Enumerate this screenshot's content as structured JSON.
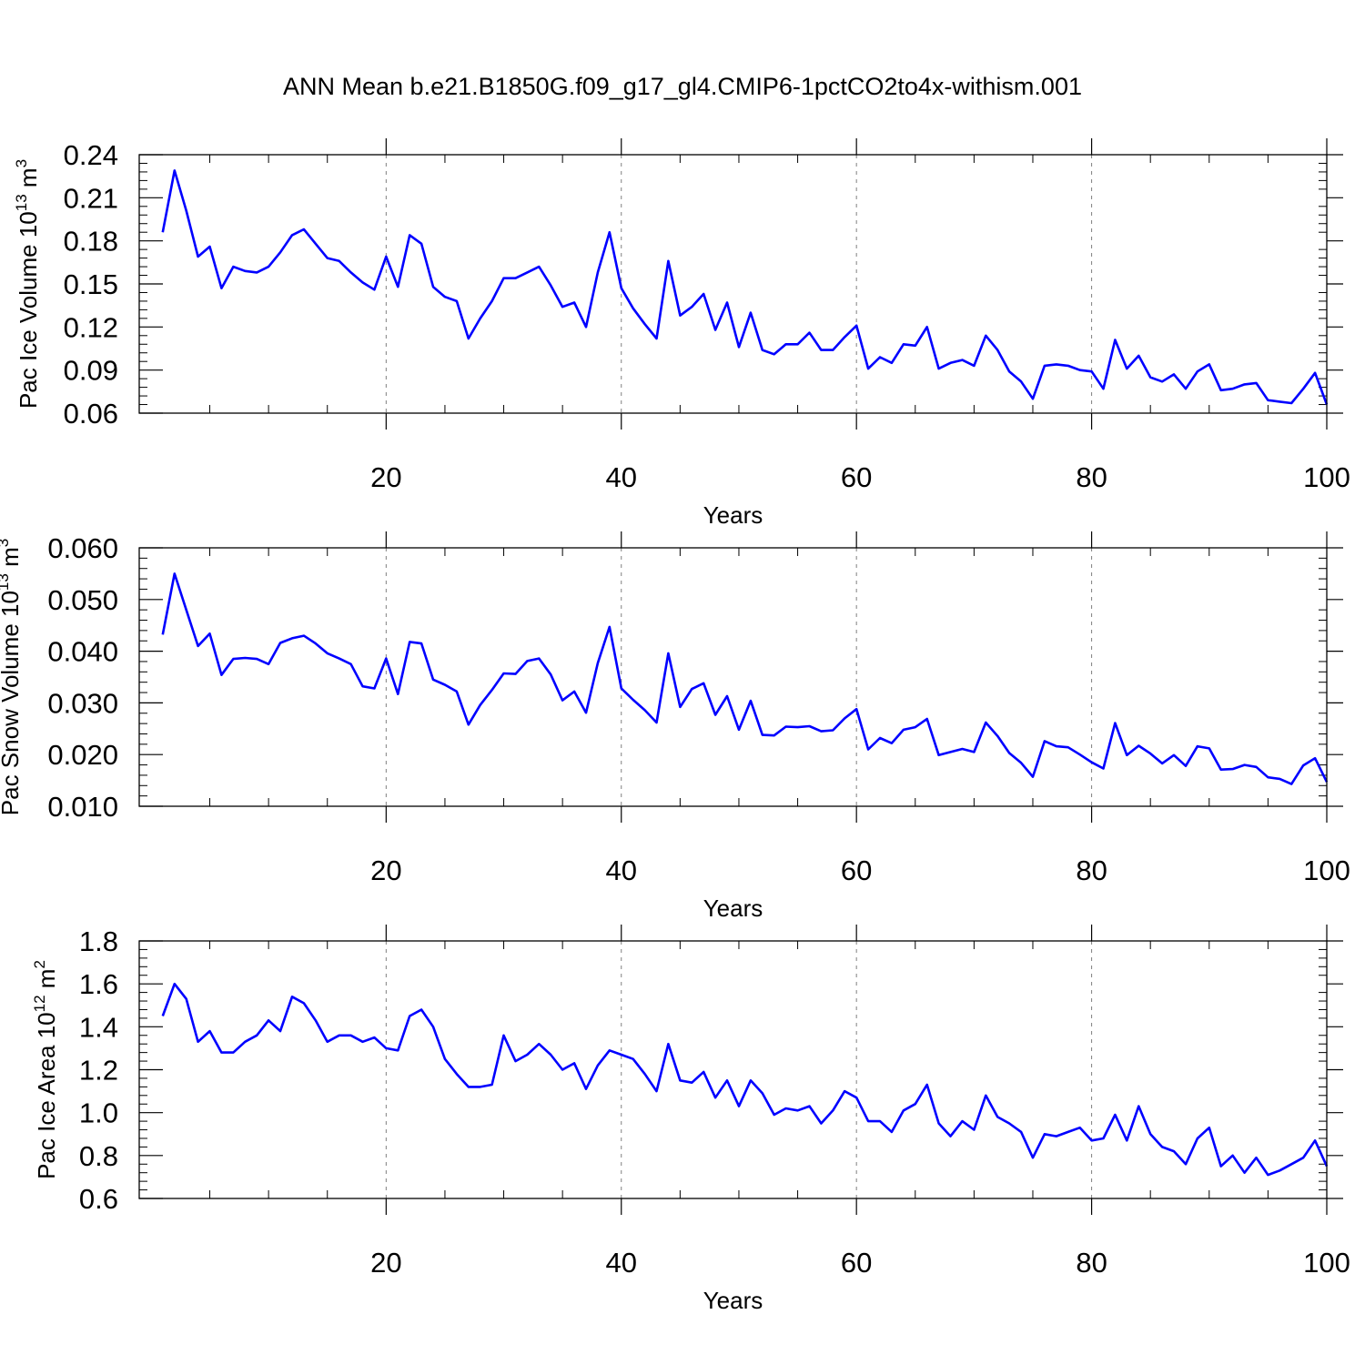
{
  "title": "ANN Mean b.e21.B1850G.f09_g17_gl4.CMIP6-1pctCO2to4x-withism.001",
  "colors": {
    "line": "#0000ff",
    "grid": "#808080",
    "axis": "#000000"
  },
  "chart_data": [
    {
      "type": "line",
      "xlabel": "Years",
      "ylabel_main": "Pac Ice Volume 10",
      "ylabel_exp": "13",
      "ylabel_unit": " m",
      "ylabel_unit_exp": "3",
      "xlim": [
        1,
        100
      ],
      "ylim": [
        0.06,
        0.24
      ],
      "yticks": [
        0.06,
        0.09,
        0.12,
        0.15,
        0.18,
        0.21,
        0.24
      ],
      "ytick_labels": [
        "0.06",
        "0.09",
        "0.12",
        "0.15",
        "0.18",
        "0.21",
        "0.24"
      ],
      "xticks": [
        20,
        40,
        60,
        80,
        100
      ],
      "xtick_labels": [
        "20",
        "40",
        "60",
        "80",
        "100"
      ],
      "grid": "vertical dashed at major x ticks",
      "values": [
        0.186,
        0.229,
        0.201,
        0.169,
        0.176,
        0.147,
        0.162,
        0.159,
        0.158,
        0.162,
        0.172,
        0.184,
        0.188,
        0.178,
        0.168,
        0.166,
        0.158,
        0.151,
        0.146,
        0.169,
        0.148,
        0.184,
        0.178,
        0.148,
        0.141,
        0.138,
        0.112,
        0.126,
        0.138,
        0.154,
        0.154,
        0.158,
        0.162,
        0.149,
        0.134,
        0.137,
        0.12,
        0.158,
        0.186,
        0.147,
        0.133,
        0.122,
        0.112,
        0.166,
        0.128,
        0.134,
        0.143,
        0.118,
        0.137,
        0.106,
        0.13,
        0.104,
        0.101,
        0.108,
        0.108,
        0.116,
        0.104,
        0.104,
        0.113,
        0.121,
        0.091,
        0.099,
        0.095,
        0.108,
        0.107,
        0.12,
        0.091,
        0.095,
        0.097,
        0.093,
        0.114,
        0.104,
        0.089,
        0.082,
        0.07,
        0.093,
        0.094,
        0.093,
        0.09,
        0.089,
        0.077,
        0.111,
        0.091,
        0.1,
        0.085,
        0.082,
        0.087,
        0.077,
        0.089,
        0.094,
        0.076,
        0.077,
        0.08,
        0.081,
        0.069,
        0.068,
        0.067,
        0.077,
        0.088,
        0.066
      ]
    },
    {
      "type": "line",
      "xlabel": "Years",
      "ylabel_main": "Pac Snow Volume 10",
      "ylabel_exp": "13",
      "ylabel_unit": " m",
      "ylabel_unit_exp": "3",
      "xlim": [
        1,
        100
      ],
      "ylim": [
        0.01,
        0.06
      ],
      "yticks": [
        0.01,
        0.02,
        0.03,
        0.04,
        0.05,
        0.06
      ],
      "ytick_labels": [
        "0.010",
        "0.020",
        "0.030",
        "0.040",
        "0.050",
        "0.060"
      ],
      "xticks": [
        20,
        40,
        60,
        80,
        100
      ],
      "xtick_labels": [
        "20",
        "40",
        "60",
        "80",
        "100"
      ],
      "grid": "vertical dashed at major x ticks",
      "values": [
        0.0432,
        0.055,
        0.048,
        0.041,
        0.0434,
        0.0354,
        0.0385,
        0.0387,
        0.0385,
        0.0375,
        0.0416,
        0.0425,
        0.043,
        0.0415,
        0.0396,
        0.0386,
        0.0375,
        0.0332,
        0.0328,
        0.0386,
        0.0317,
        0.0418,
        0.0415,
        0.0345,
        0.0335,
        0.0322,
        0.0258,
        0.0296,
        0.0325,
        0.0357,
        0.0356,
        0.0381,
        0.0386,
        0.0355,
        0.0305,
        0.0322,
        0.0281,
        0.0377,
        0.0447,
        0.0328,
        0.0306,
        0.0286,
        0.0262,
        0.0396,
        0.0292,
        0.0327,
        0.0338,
        0.0277,
        0.0313,
        0.0248,
        0.0304,
        0.0238,
        0.0237,
        0.0254,
        0.0253,
        0.0255,
        0.0245,
        0.0247,
        0.027,
        0.0288,
        0.021,
        0.0232,
        0.0222,
        0.0248,
        0.0253,
        0.0269,
        0.0199,
        0.0205,
        0.0211,
        0.0205,
        0.0262,
        0.0236,
        0.0203,
        0.0184,
        0.0157,
        0.0226,
        0.0216,
        0.0214,
        0.02,
        0.0185,
        0.0173,
        0.0261,
        0.0199,
        0.0217,
        0.0202,
        0.0183,
        0.0199,
        0.0178,
        0.0216,
        0.0212,
        0.0171,
        0.0172,
        0.018,
        0.0176,
        0.0156,
        0.0153,
        0.0143,
        0.0179,
        0.0193,
        0.0147
      ]
    },
    {
      "type": "line",
      "xlabel": "Years",
      "ylabel_main": "Pac Ice Area 10",
      "ylabel_exp": "12",
      "ylabel_unit": " m",
      "ylabel_unit_exp": "2",
      "xlim": [
        1,
        100
      ],
      "ylim": [
        0.6,
        1.8
      ],
      "yticks": [
        0.6,
        0.8,
        1.0,
        1.2,
        1.4,
        1.6,
        1.8
      ],
      "ytick_labels": [
        "0.6",
        "0.8",
        "1.0",
        "1.2",
        "1.4",
        "1.6",
        "1.8"
      ],
      "xticks": [
        20,
        40,
        60,
        80,
        100
      ],
      "xtick_labels": [
        "20",
        "40",
        "60",
        "80",
        "100"
      ],
      "grid": "vertical dashed at major x ticks",
      "values": [
        1.45,
        1.6,
        1.53,
        1.33,
        1.38,
        1.28,
        1.28,
        1.33,
        1.36,
        1.43,
        1.38,
        1.54,
        1.51,
        1.43,
        1.33,
        1.36,
        1.36,
        1.33,
        1.35,
        1.3,
        1.29,
        1.45,
        1.48,
        1.4,
        1.25,
        1.18,
        1.12,
        1.12,
        1.13,
        1.36,
        1.24,
        1.27,
        1.32,
        1.27,
        1.2,
        1.23,
        1.11,
        1.22,
        1.29,
        1.27,
        1.25,
        1.18,
        1.1,
        1.32,
        1.15,
        1.14,
        1.19,
        1.07,
        1.15,
        1.03,
        1.15,
        1.09,
        0.99,
        1.02,
        1.01,
        1.03,
        0.95,
        1.01,
        1.1,
        1.07,
        0.96,
        0.96,
        0.91,
        1.01,
        1.04,
        1.13,
        0.95,
        0.89,
        0.96,
        0.92,
        1.08,
        0.98,
        0.95,
        0.91,
        0.79,
        0.9,
        0.89,
        0.91,
        0.93,
        0.87,
        0.88,
        0.99,
        0.87,
        1.03,
        0.9,
        0.84,
        0.82,
        0.76,
        0.88,
        0.93,
        0.75,
        0.8,
        0.72,
        0.79,
        0.71,
        0.73,
        0.76,
        0.79,
        0.87,
        0.75
      ]
    }
  ]
}
